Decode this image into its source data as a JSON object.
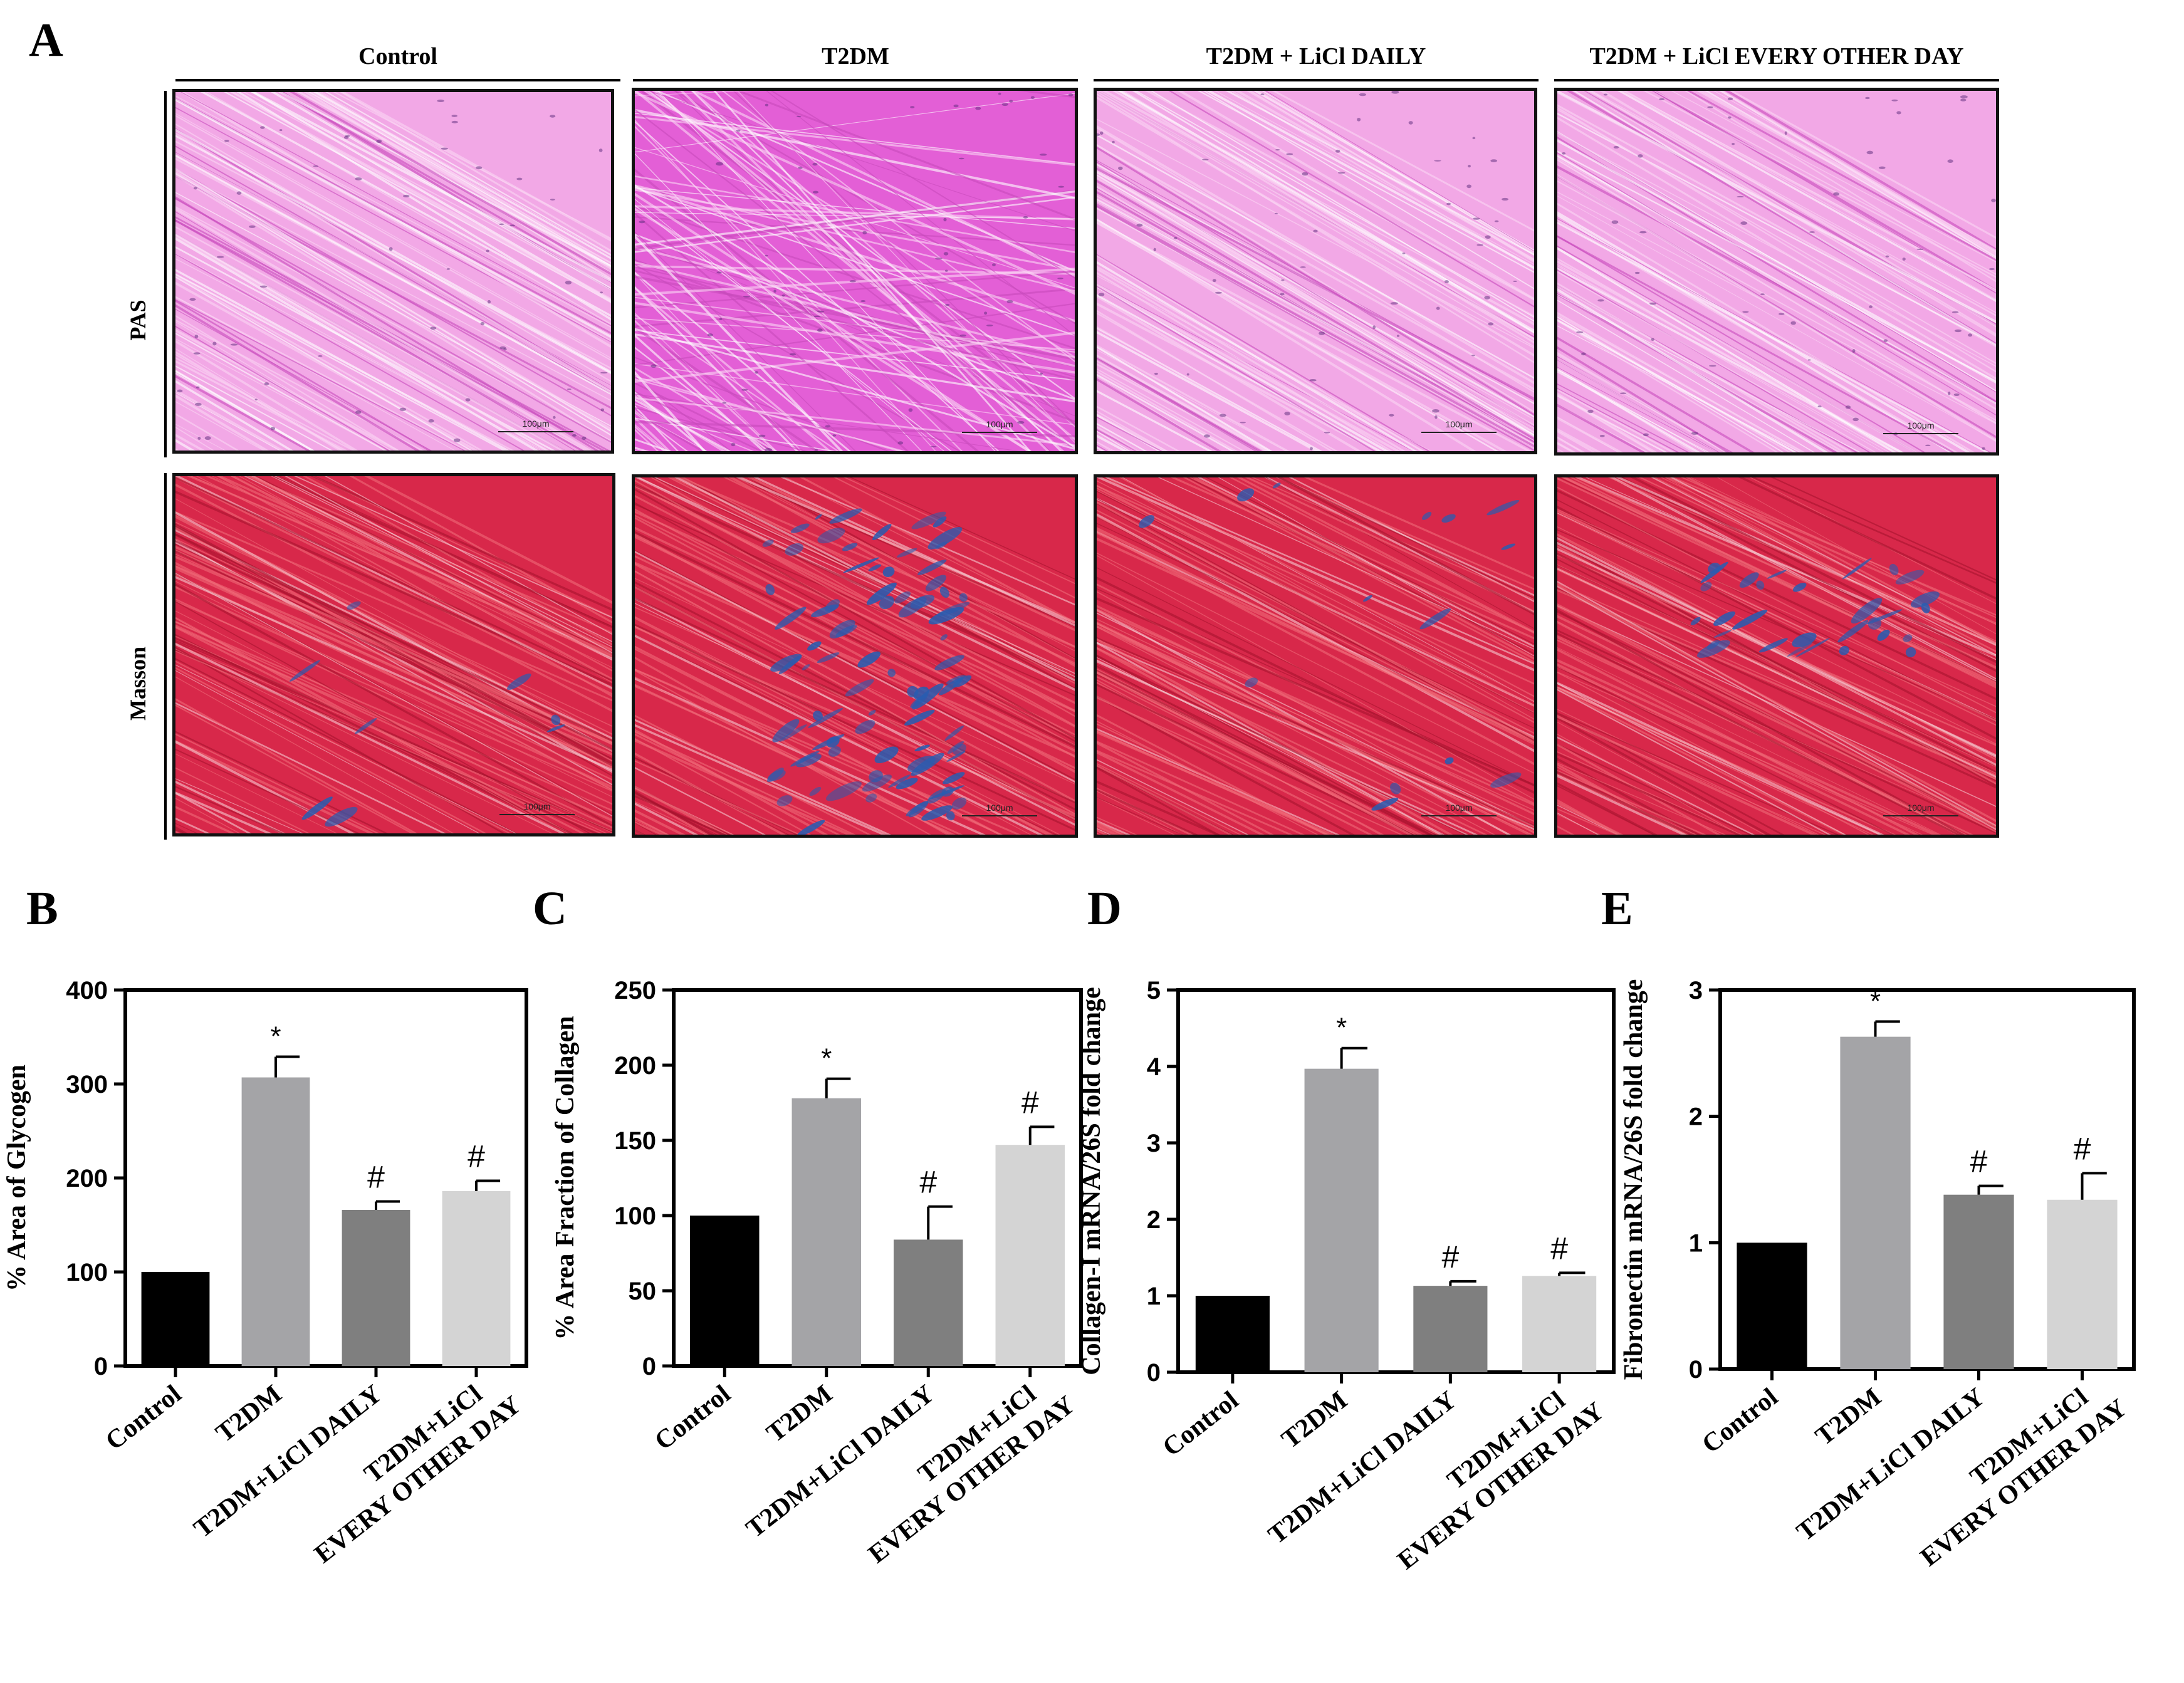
{
  "panel_a": {
    "letter": "A",
    "columns": [
      "Control",
      "T2DM",
      "T2DM + LiCl DAILY",
      "T2DM + LiCl EVERY OTHER DAY"
    ],
    "rows": [
      "PAS",
      "Masson"
    ],
    "scale_label": "100μm",
    "colors": {
      "pas_base": "#f2a8e6",
      "pas_t2dm": "#e35fd6",
      "masson_base": "#d8284a",
      "collagen": "#2a5cb0"
    }
  },
  "chart_data": [
    {
      "panel": "B",
      "type": "bar",
      "categories": [
        "Control",
        "T2DM",
        "T2DM+LiCl DAILY",
        "T2DM+LiCl\nEVERY OTHER DAY"
      ],
      "values": [
        100,
        307,
        166,
        186
      ],
      "errors": [
        0,
        22,
        9,
        11
      ],
      "markers": [
        "",
        "*",
        "#",
        "#"
      ],
      "ylabel": "% Area of Glycogen",
      "ylim": [
        0,
        400
      ],
      "yticks": [
        0,
        100,
        200,
        300,
        400
      ],
      "colors": [
        "#000000",
        "#a4a4a7",
        "#7f7f7f",
        "#d4d4d4"
      ]
    },
    {
      "panel": "C",
      "type": "bar",
      "categories": [
        "Control",
        "T2DM",
        "T2DM+LiCl DAILY",
        "T2DM+LiCl\nEVERY OTHER DAY"
      ],
      "values": [
        100,
        178,
        84,
        147
      ],
      "errors": [
        0,
        13,
        22,
        12
      ],
      "markers": [
        "",
        "*",
        "#",
        "#"
      ],
      "ylabel": "% Area Fraction of Collagen",
      "ylim": [
        0,
        250
      ],
      "yticks": [
        0,
        50,
        100,
        150,
        200,
        250
      ],
      "colors": [
        "#000000",
        "#a4a4a7",
        "#7f7f7f",
        "#d4d4d4"
      ]
    },
    {
      "panel": "D",
      "type": "bar",
      "categories": [
        "Control",
        "T2DM",
        "T2DM+LiCl DAILY",
        "T2DM+LiCl\nEVERY OTHER DAY"
      ],
      "values": [
        1.0,
        3.97,
        1.13,
        1.26
      ],
      "errors": [
        0,
        0.27,
        0.06,
        0.04
      ],
      "markers": [
        "",
        "*",
        "#",
        "#"
      ],
      "ylabel": "Collagen-I mRNA/26S fold change",
      "ylim": [
        0,
        5
      ],
      "yticks": [
        0,
        1,
        2,
        3,
        4,
        5
      ],
      "colors": [
        "#000000",
        "#a4a4a7",
        "#7f7f7f",
        "#d4d4d4"
      ]
    },
    {
      "panel": "E",
      "type": "bar",
      "categories": [
        "Control",
        "T2DM",
        "T2DM+LiCl DAILY",
        "T2DM+LiCl\nEVERY OTHER DAY"
      ],
      "values": [
        1.0,
        2.63,
        1.38,
        1.34
      ],
      "errors": [
        0,
        0.12,
        0.07,
        0.21
      ],
      "markers": [
        "",
        "*",
        "#",
        "#"
      ],
      "ylabel": "Fibronectin mRNA/26S fold change",
      "ylim": [
        0,
        3
      ],
      "yticks": [
        0,
        1,
        2,
        3
      ],
      "colors": [
        "#000000",
        "#a4a4a7",
        "#7f7f7f",
        "#d4d4d4"
      ]
    }
  ]
}
